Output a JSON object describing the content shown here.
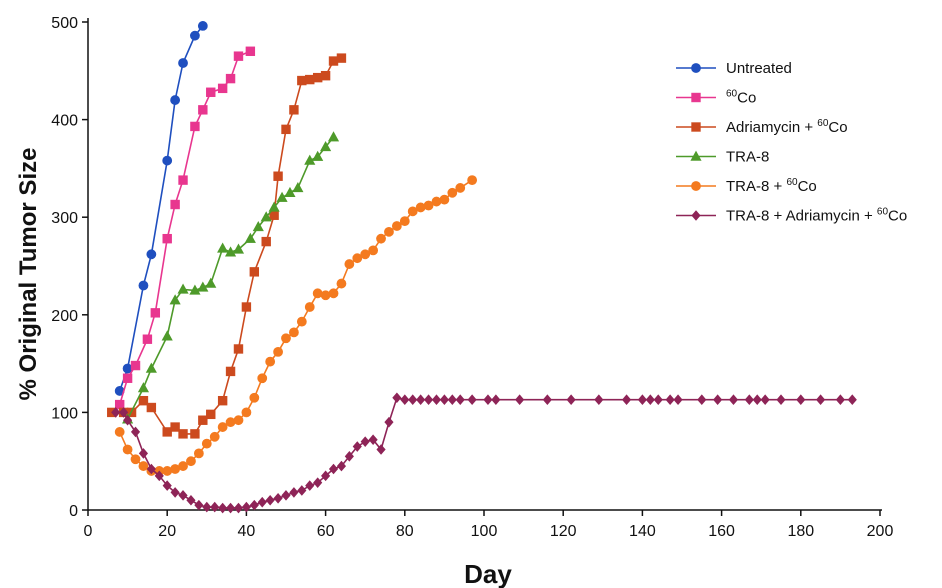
{
  "chart_data": {
    "type": "line",
    "xlabel": "Day",
    "ylabel": "% Original Tumor Size",
    "xlim": [
      0,
      200
    ],
    "ylim": [
      0,
      500
    ],
    "xticks": [
      0,
      20,
      40,
      60,
      80,
      100,
      120,
      140,
      160,
      180,
      200
    ],
    "yticks": [
      0,
      100,
      200,
      300,
      400,
      500
    ],
    "grid": false,
    "legend_position": "top-right",
    "series": [
      {
        "name": "Untreated",
        "legend": {
          "text": "Untreated"
        },
        "color": "#1f4fbf",
        "marker": "circle",
        "x": [
          8,
          10,
          14,
          16,
          20,
          22,
          24,
          27,
          29
        ],
        "y": [
          122,
          145,
          230,
          262,
          358,
          420,
          458,
          486,
          496
        ]
      },
      {
        "name": "60Co",
        "legend": {
          "pre": "",
          "sup": "60",
          "post": "Co"
        },
        "color": "#e8368f",
        "marker": "square",
        "x": [
          8,
          10,
          12,
          15,
          17,
          20,
          22,
          24,
          27,
          29,
          31,
          34,
          36,
          38,
          41
        ],
        "y": [
          108,
          135,
          148,
          175,
          202,
          278,
          313,
          338,
          393,
          410,
          428,
          432,
          442,
          465,
          470
        ]
      },
      {
        "name": "Adriamycin + 60Co",
        "legend": {
          "pre": "Adriamycin + ",
          "sup": "60",
          "post": "Co"
        },
        "color": "#cc4a1e",
        "marker": "square",
        "x": [
          6,
          9,
          11,
          14,
          16,
          20,
          22,
          24,
          27,
          29,
          31,
          34,
          36,
          38,
          40,
          42,
          45,
          47,
          48,
          50,
          52,
          54,
          56,
          58,
          60,
          62,
          64
        ],
        "y": [
          100,
          100,
          100,
          112,
          105,
          80,
          85,
          78,
          78,
          92,
          98,
          112,
          142,
          165,
          208,
          244,
          275,
          302,
          342,
          390,
          410,
          440,
          441,
          443,
          445,
          460,
          463
        ]
      },
      {
        "name": "TRA-8",
        "legend": {
          "text": "TRA-8"
        },
        "color": "#4e9a2a",
        "marker": "triangle",
        "x": [
          10,
          14,
          16,
          20,
          22,
          24,
          27,
          29,
          31,
          34,
          36,
          38,
          41,
          43,
          45,
          47,
          49,
          51,
          53,
          56,
          58,
          60,
          62
        ],
        "y": [
          93,
          125,
          145,
          178,
          215,
          226,
          225,
          228,
          232,
          268,
          264,
          267,
          278,
          290,
          300,
          310,
          320,
          325,
          330,
          358,
          362,
          372,
          382
        ]
      },
      {
        "name": "TRA-8 + 60Co",
        "legend": {
          "pre": "TRA-8 + ",
          "sup": "60",
          "post": "Co"
        },
        "color": "#f47a1f",
        "marker": "circle",
        "x": [
          8,
          10,
          12,
          14,
          16,
          18,
          20,
          22,
          24,
          26,
          28,
          30,
          32,
          34,
          36,
          38,
          40,
          42,
          44,
          46,
          48,
          50,
          52,
          54,
          56,
          58,
          60,
          62,
          64,
          66,
          68,
          70,
          72,
          74,
          76,
          78,
          80,
          82,
          84,
          86,
          88,
          90,
          92,
          94,
          97
        ],
        "y": [
          80,
          62,
          52,
          45,
          40,
          40,
          40,
          42,
          45,
          50,
          58,
          68,
          75,
          85,
          90,
          92,
          100,
          115,
          135,
          152,
          162,
          176,
          182,
          193,
          208,
          222,
          220,
          222,
          232,
          252,
          258,
          262,
          266,
          278,
          285,
          291,
          296,
          306,
          310,
          312,
          316,
          318,
          325,
          330,
          338
        ]
      },
      {
        "name": "TRA-8 + Adriamycin + 60Co",
        "legend": {
          "pre": "TRA-8 + Adriamycin + ",
          "sup": "60",
          "post": "Co"
        },
        "color": "#8e2457",
        "marker": "diamond",
        "x": [
          7,
          9,
          10,
          12,
          14,
          16,
          18,
          20,
          22,
          24,
          26,
          28,
          30,
          32,
          34,
          36,
          38,
          40,
          42,
          44,
          46,
          48,
          50,
          52,
          54,
          56,
          58,
          60,
          62,
          64,
          66,
          68,
          70,
          72,
          74,
          76,
          78,
          80,
          82,
          84,
          86,
          88,
          90,
          92,
          94,
          97,
          101,
          103,
          109,
          116,
          122,
          129,
          136,
          140,
          142,
          144,
          147,
          149,
          155,
          159,
          163,
          167,
          169,
          171,
          175,
          180,
          185,
          190,
          193
        ],
        "y": [
          100,
          100,
          92,
          80,
          58,
          42,
          35,
          25,
          18,
          15,
          10,
          5,
          3,
          3,
          2,
          2,
          2,
          3,
          5,
          8,
          10,
          12,
          15,
          18,
          20,
          25,
          28,
          35,
          42,
          45,
          55,
          65,
          70,
          72,
          62,
          90,
          115,
          113,
          113,
          113,
          113,
          113,
          113,
          113,
          113,
          113,
          113,
          113,
          113,
          113,
          113,
          113,
          113,
          113,
          113,
          113,
          113,
          113,
          113,
          113,
          113,
          113,
          113,
          113,
          113,
          113,
          113,
          113,
          113
        ]
      }
    ]
  }
}
